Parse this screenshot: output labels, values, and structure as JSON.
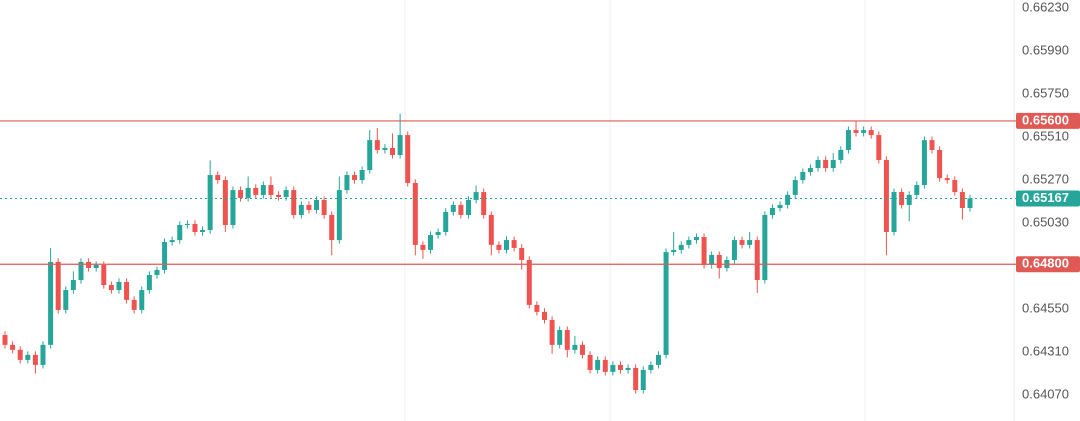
{
  "chart_data": {
    "type": "candlestick",
    "up_color": "#26a69a",
    "down_color": "#ef5350",
    "ylim": [
      0.63925,
      0.66275
    ],
    "yticks": [
      {
        "value": 0.6623,
        "label": "0.66230"
      },
      {
        "value": 0.6599,
        "label": "0.65990"
      },
      {
        "value": 0.6575,
        "label": "0.65750"
      },
      {
        "value": 0.6551,
        "label": "0.65510"
      },
      {
        "value": 0.6527,
        "label": "0.65270"
      },
      {
        "value": 0.6503,
        "label": "0.65030"
      },
      {
        "value": 0.6455,
        "label": "0.64550"
      },
      {
        "value": 0.6431,
        "label": "0.64310"
      },
      {
        "value": 0.6407,
        "label": "0.64070"
      }
    ],
    "grid": false,
    "hlines": [
      {
        "value": 0.656,
        "label": "0.65600",
        "color": "#e05a55"
      },
      {
        "value": 0.648,
        "label": "0.64800",
        "color": "#e05a55"
      }
    ],
    "last_price": 0.65167,
    "last_price_color": "#26a69a",
    "open": [
      0.64405,
      0.6435,
      0.64322,
      0.64266,
      0.64294,
      0.64238,
      0.6435,
      0.64813,
      0.64545,
      0.64656,
      0.64712,
      0.64813,
      0.64779,
      0.64796,
      0.64684,
      0.64656,
      0.64701,
      0.64601,
      0.64545,
      0.64656,
      0.6474,
      0.64768,
      0.64924,
      0.64935,
      0.65019,
      0.65025,
      0.6498,
      0.64991,
      0.65298,
      0.6527,
      0.65019,
      0.65214,
      0.6517,
      0.65226,
      0.65187,
      0.65242,
      0.65187,
      0.65175,
      0.65214,
      0.65075,
      0.65131,
      0.65103,
      0.65159,
      0.65075,
      0.64935,
      0.65214,
      0.65298,
      0.6527,
      0.65326,
      0.65493,
      0.65438,
      0.65449,
      0.6541,
      0.65521,
      0.65254,
      0.64908,
      0.6488,
      0.64963,
      0.6498,
      0.65092,
      0.65131,
      0.65075,
      0.65159,
      0.65203,
      0.65075,
      0.64908,
      0.6488,
      0.64935,
      0.64891,
      0.64824,
      0.64573,
      0.64534,
      0.64489,
      0.6435,
      0.64433,
      0.64322,
      0.6435,
      0.64294,
      0.6421,
      0.64266,
      0.64199,
      0.64238,
      0.6421,
      0.64221,
      0.64098,
      0.6421,
      0.64238,
      0.64294,
      0.64868,
      0.6488,
      0.64908,
      0.64935,
      0.64952,
      0.64796,
      0.64852,
      0.64779,
      0.64824,
      0.64935,
      0.64908,
      0.64935,
      0.64712,
      0.65075,
      0.65114,
      0.65131,
      0.65187,
      0.6527,
      0.65315,
      0.65337,
      0.65382,
      0.65337,
      0.65382,
      0.65438,
      0.65549,
      0.65533,
      0.65549,
      0.65521,
      0.65382,
      0.6498,
      0.65203,
      0.65131,
      0.65187,
      0.65242,
      0.65493,
      0.65438,
      0.65281,
      0.6527,
      0.65203,
      0.65114
    ],
    "high": [
      0.64425,
      0.6437,
      0.64342,
      0.64314,
      0.64314,
      0.6437,
      0.6489,
      0.64833,
      0.64676,
      0.6476,
      0.64833,
      0.64833,
      0.64816,
      0.64816,
      0.64704,
      0.64721,
      0.64721,
      0.64621,
      0.64676,
      0.6476,
      0.64788,
      0.64944,
      0.64955,
      0.65039,
      0.65045,
      0.65045,
      0.65011,
      0.6538,
      0.65318,
      0.6529,
      0.65234,
      0.65234,
      0.6529,
      0.65246,
      0.65262,
      0.6529,
      0.65207,
      0.65234,
      0.65234,
      0.65151,
      0.65151,
      0.65179,
      0.65179,
      0.65095,
      0.6529,
      0.65318,
      0.65318,
      0.65346,
      0.6555,
      0.6556,
      0.6547,
      0.6553,
      0.6564,
      0.65541,
      0.65274,
      0.64928,
      0.64983,
      0.65,
      0.65112,
      0.65151,
      0.65151,
      0.65179,
      0.6524,
      0.65223,
      0.65095,
      0.64928,
      0.64955,
      0.64955,
      0.64911,
      0.64844,
      0.64593,
      0.64554,
      0.64509,
      0.64453,
      0.64453,
      0.644,
      0.6437,
      0.64314,
      0.64286,
      0.64286,
      0.64258,
      0.64258,
      0.64241,
      0.64241,
      0.6423,
      0.64258,
      0.64314,
      0.64888,
      0.6498,
      0.64928,
      0.64955,
      0.64972,
      0.64972,
      0.64872,
      0.64872,
      0.64844,
      0.64955,
      0.64955,
      0.6498,
      0.64955,
      0.65095,
      0.65134,
      0.65151,
      0.65207,
      0.6529,
      0.65335,
      0.65357,
      0.65402,
      0.65402,
      0.6542,
      0.65458,
      0.65569,
      0.656,
      0.65569,
      0.65569,
      0.65541,
      0.65402,
      0.65223,
      0.65223,
      0.65207,
      0.65262,
      0.65513,
      0.65513,
      0.65458,
      0.65301,
      0.6529,
      0.65223,
      0.65187
    ],
    "low": [
      0.6433,
      0.64302,
      0.64246,
      0.64246,
      0.6419,
      0.64218,
      0.6433,
      0.64525,
      0.64525,
      0.64636,
      0.64692,
      0.64759,
      0.64759,
      0.64664,
      0.64636,
      0.64636,
      0.64581,
      0.64525,
      0.64525,
      0.64636,
      0.6472,
      0.64748,
      0.64904,
      0.64915,
      0.64999,
      0.6496,
      0.6496,
      0.64971,
      0.6525,
      0.6498,
      0.64999,
      0.6515,
      0.6515,
      0.65167,
      0.65167,
      0.65167,
      0.65155,
      0.65155,
      0.65055,
      0.65055,
      0.65083,
      0.65083,
      0.65055,
      0.6485,
      0.64915,
      0.65194,
      0.6525,
      0.6525,
      0.65306,
      0.65418,
      0.65418,
      0.6539,
      0.6539,
      0.65234,
      0.6485,
      0.6483,
      0.6486,
      0.64943,
      0.6496,
      0.65072,
      0.65055,
      0.65055,
      0.65139,
      0.65055,
      0.6485,
      0.6486,
      0.6486,
      0.64871,
      0.6477,
      0.64553,
      0.64514,
      0.64469,
      0.643,
      0.6433,
      0.6428,
      0.64302,
      0.64274,
      0.6419,
      0.6419,
      0.64179,
      0.64179,
      0.6419,
      0.6419,
      0.64078,
      0.64078,
      0.6419,
      0.64218,
      0.64274,
      0.64848,
      0.6486,
      0.64888,
      0.64915,
      0.64776,
      0.64776,
      0.6472,
      0.64759,
      0.64804,
      0.64888,
      0.64888,
      0.6464,
      0.64692,
      0.65055,
      0.65094,
      0.65111,
      0.65167,
      0.6525,
      0.65295,
      0.65317,
      0.65317,
      0.65317,
      0.65362,
      0.65418,
      0.65513,
      0.65513,
      0.65501,
      0.65362,
      0.6485,
      0.6496,
      0.65111,
      0.6504,
      0.65167,
      0.65222,
      0.65418,
      0.65261,
      0.6525,
      0.65183,
      0.6505,
      0.65094
    ],
    "close": [
      0.6435,
      0.64322,
      0.64266,
      0.64294,
      0.64238,
      0.6435,
      0.64813,
      0.64545,
      0.64656,
      0.64712,
      0.64813,
      0.64779,
      0.64796,
      0.64684,
      0.64656,
      0.64701,
      0.64601,
      0.64545,
      0.64656,
      0.6474,
      0.64768,
      0.64924,
      0.64935,
      0.65019,
      0.65025,
      0.6498,
      0.64991,
      0.65298,
      0.6527,
      0.65019,
      0.65214,
      0.6517,
      0.65226,
      0.65187,
      0.65242,
      0.65187,
      0.65175,
      0.65214,
      0.65075,
      0.65131,
      0.65103,
      0.65159,
      0.65075,
      0.64935,
      0.65214,
      0.65298,
      0.6527,
      0.65326,
      0.65493,
      0.65438,
      0.65449,
      0.6541,
      0.65521,
      0.65254,
      0.64908,
      0.6488,
      0.64963,
      0.6498,
      0.65092,
      0.65131,
      0.65075,
      0.65159,
      0.65203,
      0.65075,
      0.64908,
      0.6488,
      0.64935,
      0.64891,
      0.64824,
      0.64573,
      0.64534,
      0.64489,
      0.6435,
      0.64433,
      0.64322,
      0.6435,
      0.64294,
      0.6421,
      0.64266,
      0.64199,
      0.64238,
      0.6421,
      0.64221,
      0.64098,
      0.6421,
      0.64238,
      0.64294,
      0.64868,
      0.6488,
      0.64908,
      0.64935,
      0.64952,
      0.64796,
      0.64852,
      0.64779,
      0.64824,
      0.64935,
      0.64908,
      0.64935,
      0.64712,
      0.65075,
      0.65114,
      0.65131,
      0.65187,
      0.6527,
      0.65315,
      0.65337,
      0.65382,
      0.65337,
      0.65382,
      0.65438,
      0.65549,
      0.65533,
      0.65549,
      0.65521,
      0.65382,
      0.6498,
      0.65203,
      0.65131,
      0.65187,
      0.65242,
      0.65493,
      0.65438,
      0.65281,
      0.6527,
      0.65203,
      0.65114,
      0.65167
    ]
  }
}
